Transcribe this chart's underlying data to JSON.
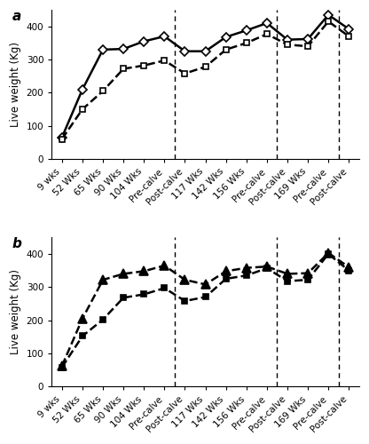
{
  "x_labels": [
    "9 wks",
    "52 Wks",
    "65 Wks",
    "90 Wks",
    "104 Wks",
    "Pre-calve",
    "Post-calve",
    "117 Wks",
    "142 Wks",
    "156 Wks",
    "Pre-calve",
    "Post-calve",
    "169 Wks",
    "Pre-calve",
    "Post-calve"
  ],
  "vline_positions": [
    5.5,
    10.5,
    13.5
  ],
  "panel_a": {
    "label": "a",
    "series1": {
      "values": [
        65,
        210,
        330,
        332,
        355,
        370,
        325,
        325,
        368,
        388,
        410,
        360,
        362,
        435,
        392
      ],
      "marker": "D",
      "linestyle": "-",
      "color": "black",
      "markersize": 5,
      "markerfacecolor": "white",
      "linewidth": 1.8
    },
    "series2": {
      "values": [
        60,
        150,
        205,
        272,
        282,
        297,
        258,
        278,
        330,
        350,
        377,
        345,
        340,
        415,
        370
      ],
      "marker": "s",
      "linestyle": "--",
      "color": "black",
      "markersize": 5,
      "markerfacecolor": "white",
      "linewidth": 1.8
    },
    "ylabel": "Live weight (Kg)",
    "ylim": [
      0,
      450
    ],
    "yticks": [
      0,
      100,
      200,
      300,
      400
    ]
  },
  "panel_b": {
    "label": "b",
    "series1": {
      "values": [
        62,
        205,
        322,
        340,
        348,
        365,
        322,
        308,
        348,
        358,
        362,
        340,
        342,
        403,
        360
      ],
      "marker": "^",
      "linestyle": "--",
      "color": "black",
      "markersize": 7,
      "markerfacecolor": "black",
      "linewidth": 1.8
    },
    "series2": {
      "values": [
        58,
        152,
        202,
        268,
        278,
        297,
        258,
        270,
        325,
        335,
        357,
        318,
        322,
        400,
        350
      ],
      "marker": "s",
      "linestyle": "--",
      "color": "black",
      "markersize": 5,
      "markerfacecolor": "black",
      "linewidth": 1.8
    },
    "ylabel": "Live weight (Kg)",
    "ylim": [
      0,
      450
    ],
    "yticks": [
      0,
      100,
      200,
      300,
      400
    ]
  },
  "background_color": "white",
  "tick_fontsize": 7.5,
  "label_fontsize": 8.5,
  "panel_label_fontsize": 11
}
